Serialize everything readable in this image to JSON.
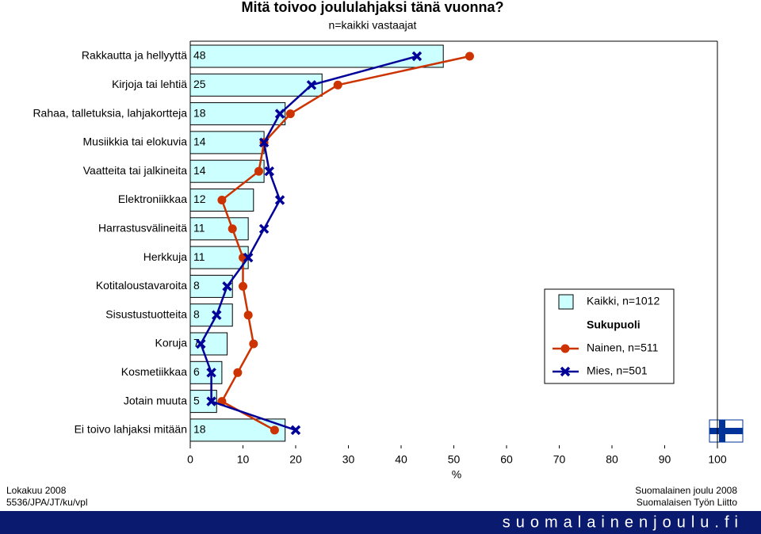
{
  "chart_data": {
    "type": "bar",
    "orientation": "horizontal",
    "title": "Mitä toivoo joululahjaksi tänä vuonna?",
    "subtitle": "n=kaikki vastaajat",
    "x_label": "%",
    "categories": [
      "Rakkautta ja hellyyttä",
      "Kirjoja tai lehtiä",
      "Rahaa, talletuksia, lahjakortteja",
      "Musiikkia tai elokuvia",
      "Vaatteita tai jalkineita",
      "Elektroniikkaa",
      "Harrastusvälineitä",
      "Herkkuja",
      "Kotitaloustavaroita",
      "Sisustustuotteita",
      "Koruja",
      "Kosmetiikkaa",
      "Jotain muuta",
      "Ei toivo lahjaksi mitään"
    ],
    "series": [
      {
        "name": "Kaikki, n=1012",
        "type": "bar",
        "color": "#ccffff",
        "values": [
          48,
          25,
          18,
          14,
          14,
          12,
          11,
          11,
          8,
          8,
          7,
          6,
          5,
          18
        ]
      },
      {
        "name": "Nainen, n=511",
        "type": "line",
        "marker": "circle",
        "color": "#cc3300",
        "values": [
          53,
          28,
          19,
          14,
          13,
          6,
          8,
          10,
          10,
          11,
          12,
          9,
          6,
          16
        ]
      },
      {
        "name": "Mies, n=501",
        "type": "line",
        "marker": "x",
        "color": "#000099",
        "values": [
          43,
          23,
          17,
          14,
          15,
          17,
          14,
          11,
          7,
          5,
          2,
          4,
          4,
          20
        ]
      }
    ],
    "legend_group_title": "Sukupuoli",
    "xlim": [
      0,
      100
    ],
    "xticks": [
      0,
      10,
      20,
      30,
      40,
      50,
      60,
      70,
      80,
      90,
      100
    ]
  },
  "footer": {
    "date": "Lokakuu 2008",
    "code": "5536/JPA/JT/ku/vpl",
    "survey": "Suomalainen joulu 2008",
    "org": "Suomalaisen Työn Liitto",
    "website": "suomalainenjoulu.fi"
  }
}
